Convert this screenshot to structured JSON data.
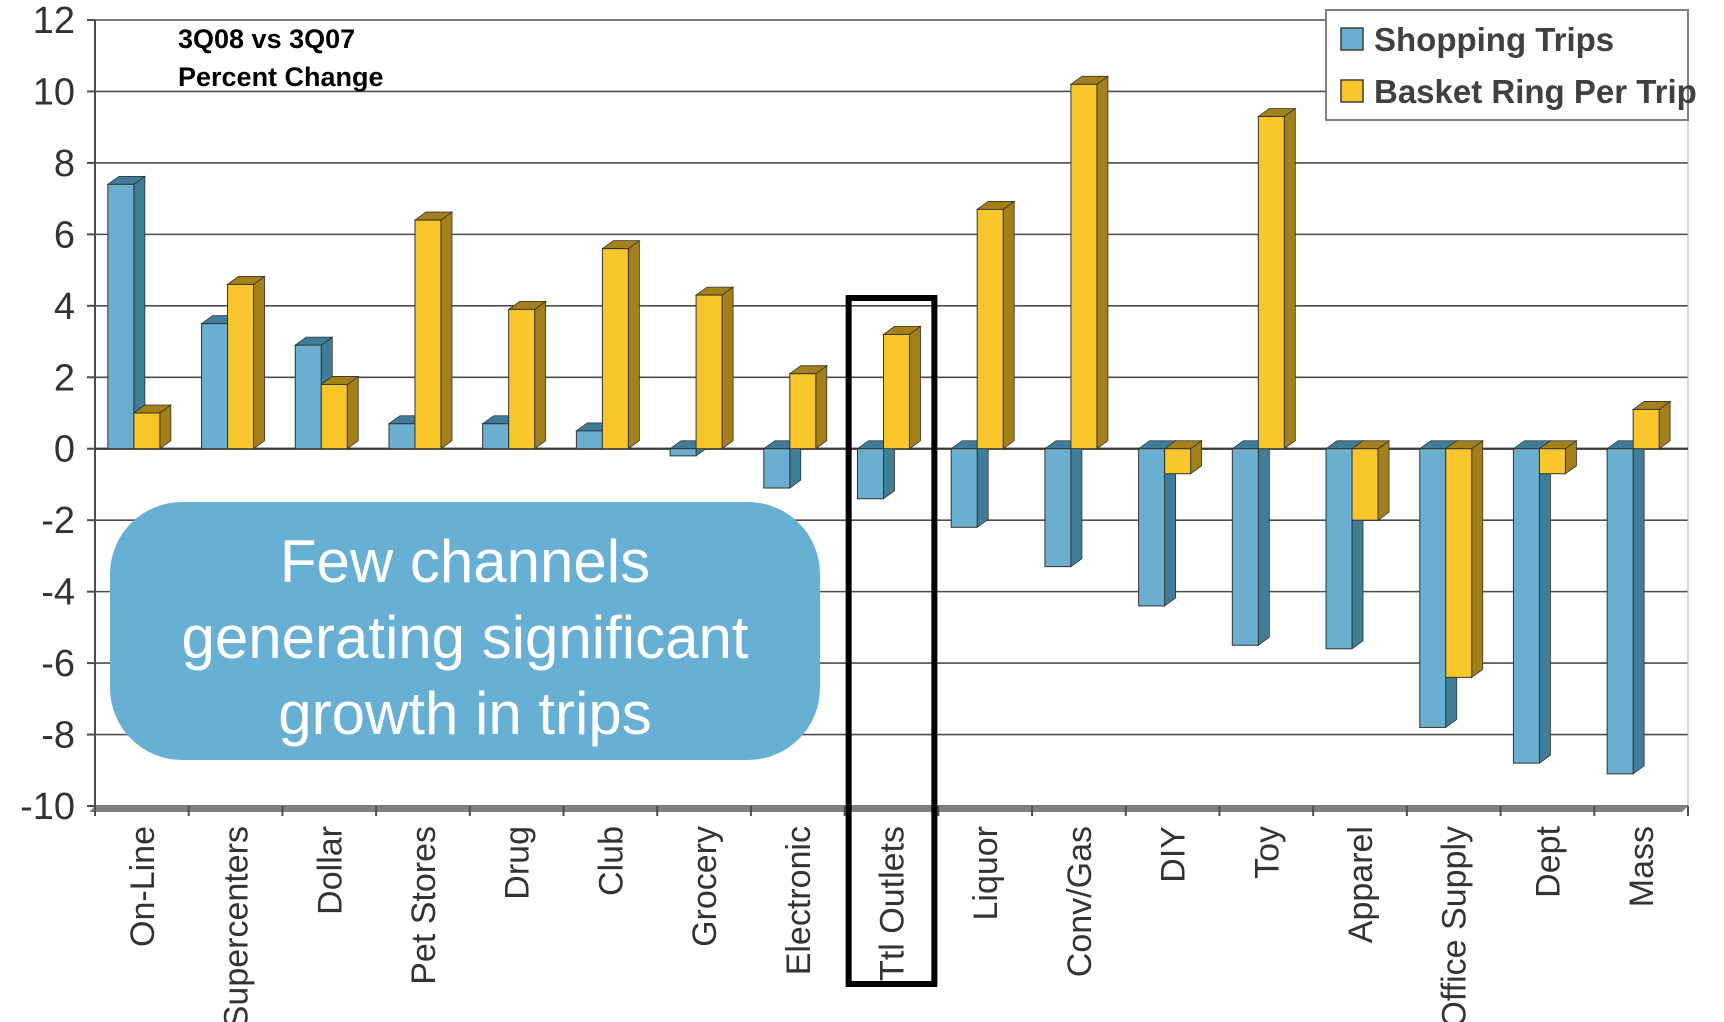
{
  "chart_data": {
    "type": "bar",
    "title_lines": [
      "3Q08 vs 3Q07",
      "Percent Change"
    ],
    "categories": [
      "On-Line",
      "Supercenters",
      "Dollar",
      "Pet Stores",
      "Drug",
      "Club",
      "Grocery",
      "Electronic",
      "Ttl Outlets",
      "Liquor",
      "Conv/Gas",
      "DIY",
      "Toy",
      "Apparel",
      "Office Supply",
      "Dept",
      "Mass"
    ],
    "series": [
      {
        "name": "Shopping Trips",
        "color": "#6aafcf",
        "side_color": "#3f7d99",
        "values": [
          7.4,
          3.5,
          2.9,
          0.7,
          0.7,
          0.5,
          -0.2,
          -1.1,
          -1.4,
          -2.2,
          -3.3,
          -4.4,
          -5.5,
          -5.6,
          -7.8,
          -8.8,
          -9.1
        ]
      },
      {
        "name": "Basket Ring Per Trip",
        "color": "#f8c62a",
        "side_color": "#a3801a",
        "values": [
          1.0,
          4.6,
          1.8,
          6.4,
          3.9,
          5.6,
          4.3,
          2.1,
          3.2,
          6.7,
          10.2,
          -0.7,
          9.3,
          -2.0,
          -6.4,
          -0.7,
          1.1
        ]
      }
    ],
    "yticks": [
      "12",
      "10",
      "8",
      "6",
      "4",
      "2",
      "0",
      "-2",
      "-4",
      "-6",
      "-8",
      "-10"
    ],
    "ylim": [
      -10,
      12
    ],
    "grid": true,
    "legend_position": "top-right",
    "highlighted_category": "Ttl Outlets"
  },
  "callout": {
    "lines": [
      "Few channels",
      "generating significant",
      "growth in trips"
    ],
    "color": "#67b0d3"
  }
}
